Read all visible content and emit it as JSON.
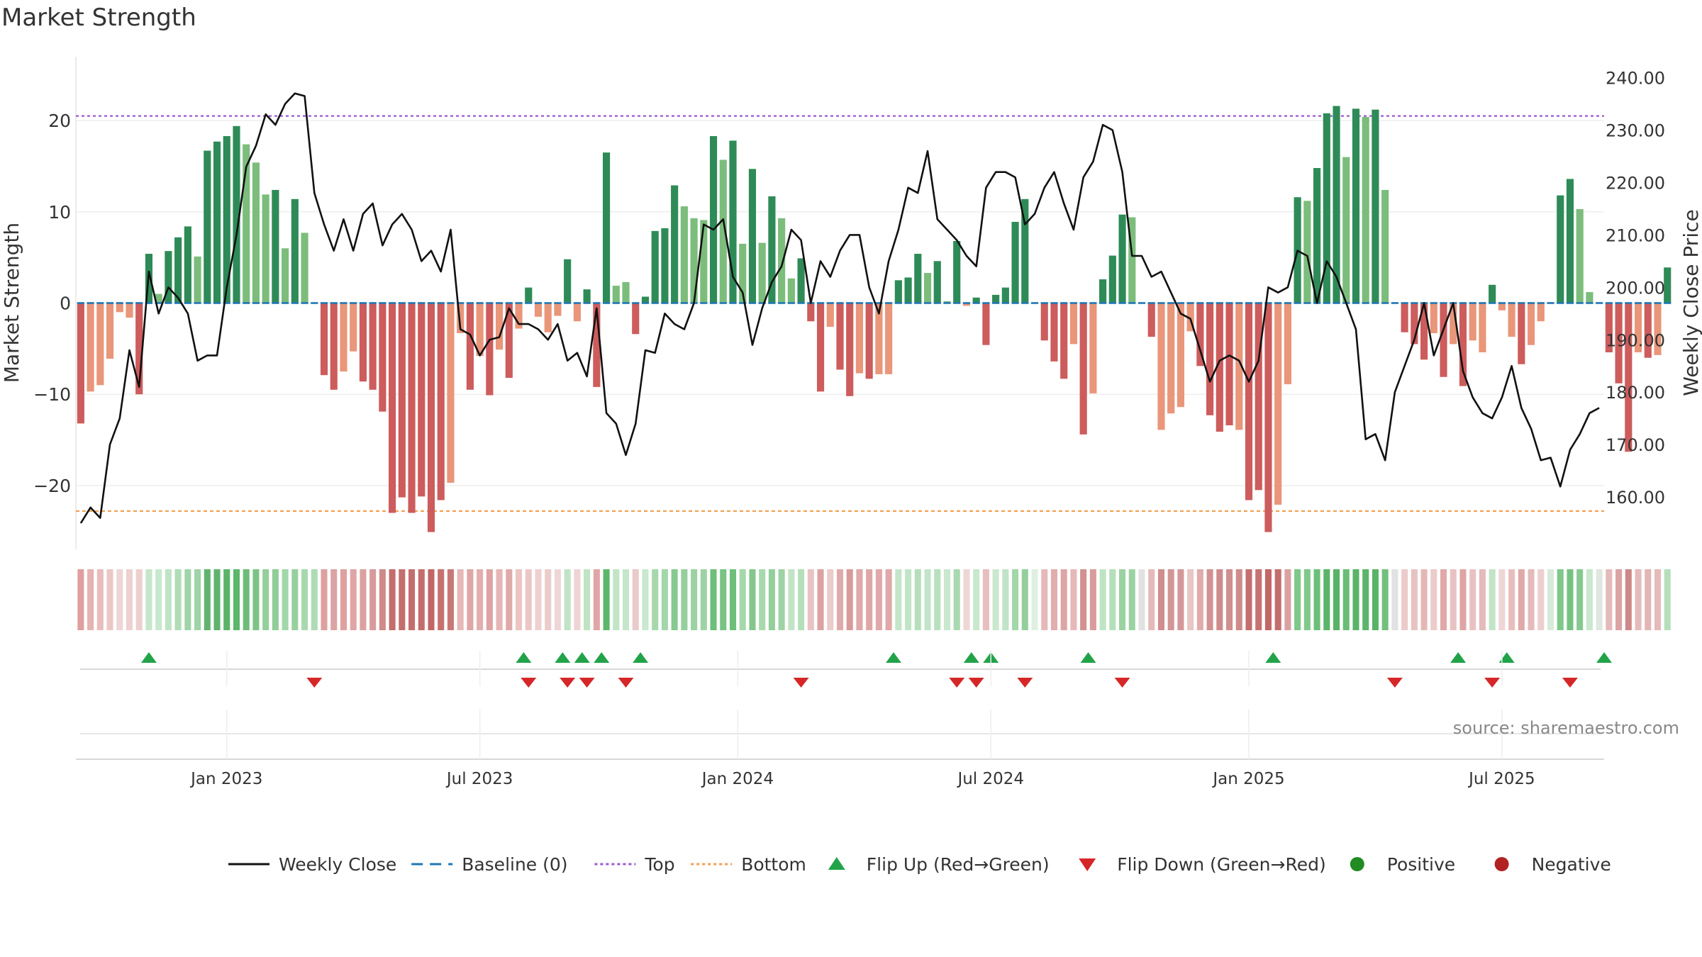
{
  "chart_data": {
    "type": "bar+line",
    "title": "Market Strength",
    "source": "source: sharemaestro.com",
    "y_left": {
      "label": "Market Strength",
      "range": [
        -27,
        27
      ],
      "ticks": [
        "20",
        "10",
        "0",
        "−10",
        "−20"
      ],
      "tick_values": [
        20,
        10,
        0,
        -10,
        -20
      ]
    },
    "y_right": {
      "label": "Weekly Close Price",
      "range": [
        150,
        244
      ],
      "ticks": [
        "240.00",
        "230.00",
        "220.00",
        "210.00",
        "200.00",
        "190.00",
        "180.00",
        "170.00",
        "160.00"
      ],
      "tick_values": [
        240,
        230,
        220,
        210,
        200,
        190,
        180,
        170,
        160
      ]
    },
    "x_ticks": [
      "Jan 2023",
      "Jul 2023",
      "Jan 2024",
      "Jul 2024",
      "Jan 2025",
      "Jul 2025"
    ],
    "x_tick_weeks": [
      15,
      41,
      67.5,
      93.5,
      120,
      146
    ],
    "top_level": 20.5,
    "bottom_level": -22.8,
    "strength": [
      -13.2,
      -9.7,
      -9.0,
      -6.1,
      -1.0,
      -1.6,
      -10,
      5.4,
      1.0,
      5.7,
      7.2,
      8.4,
      5.1,
      16.7,
      17.7,
      18.3,
      19.4,
      17.4,
      15.4,
      11.9,
      12.4,
      6.0,
      11.4,
      7.7,
      0,
      -7.9,
      -9.5,
      -7.5,
      -5.3,
      -8.6,
      -9.5,
      -11.9,
      -23.0,
      -21.3,
      -23.0,
      -21.2,
      -25.1,
      -21.6,
      -19.7,
      -3.3,
      -9.5,
      -5.8,
      -10.1,
      -5.1,
      -8.2,
      -2.8,
      1.7,
      -1.5,
      -3.2,
      -1.4,
      4.8,
      -2.0,
      1.5,
      -9.2,
      16.5,
      1.9,
      2.3,
      -3.4,
      0.7,
      7.9,
      8.2,
      12.9,
      10.6,
      9.3,
      9.1,
      18.3,
      15.7,
      17.8,
      6.5,
      14.7,
      6.6,
      11.7,
      9.3,
      2.7,
      4.9,
      -2.0,
      -9.7,
      -2.6,
      -7.3,
      -10.2,
      -7.7,
      -8.3,
      -7.8,
      -7.8,
      2.5,
      2.8,
      5.4,
      3.3,
      4.6,
      0.2,
      6.8,
      -0.3,
      0.6,
      -4.6,
      0.9,
      1.7,
      8.9,
      11.4,
      0,
      -4.1,
      -6.4,
      -8.3,
      -4.5,
      -14.4,
      -9.9,
      2.6,
      5.2,
      9.7,
      9.4,
      0,
      -3.7,
      -13.9,
      -12.1,
      -11.4,
      -3.1,
      -6.9,
      -12.3,
      -14.1,
      -13.4,
      -13.9,
      -21.6,
      -20.5,
      -25.1,
      -22.1,
      -8.9,
      11.6,
      11.2,
      14.8,
      20.8,
      21.6,
      16.0,
      21.3,
      20.4,
      21.2,
      12.4,
      0,
      -3.2,
      -4.5,
      -6.2,
      -3.3,
      -8.1,
      -4.5,
      -9.1,
      -4.1,
      -5.4,
      2.0,
      -0.8,
      -3.7,
      -6.7,
      -4.6,
      -2.0,
      0,
      11.8,
      13.6,
      10.3,
      1.2,
      0,
      -5.4,
      -8.8,
      -16.3,
      -5.4,
      -6.0,
      -5.7,
      3.9
    ],
    "intensity": [
      "a",
      "b",
      "b",
      "c",
      "d",
      "c",
      "a",
      "a",
      "d",
      "a",
      "a",
      "a",
      "b",
      "a",
      "a",
      "a",
      "a",
      "b",
      "b",
      "b",
      "a",
      "b",
      "a",
      "b",
      "e",
      "a",
      "a",
      "b",
      "b",
      "a",
      "a",
      "a",
      "a",
      "a",
      "a",
      "a",
      "a",
      "a",
      "b",
      "b",
      "a",
      "b",
      "a",
      "b",
      "a",
      "b",
      "a",
      "b",
      "b",
      "b",
      "a",
      "b",
      "a",
      "a",
      "a",
      "b",
      "b",
      "a",
      "a",
      "a",
      "a",
      "a",
      "b",
      "b",
      "b",
      "a",
      "b",
      "a",
      "b",
      "a",
      "b",
      "a",
      "b",
      "b",
      "a",
      "a",
      "a",
      "b",
      "a",
      "a",
      "b",
      "a",
      "b",
      "b",
      "a",
      "a",
      "a",
      "b",
      "a",
      "b",
      "a",
      "b",
      "a",
      "a",
      "a",
      "a",
      "a",
      "a",
      "e",
      "a",
      "a",
      "a",
      "b",
      "a",
      "b",
      "a",
      "a",
      "a",
      "b",
      "e",
      "a",
      "b",
      "b",
      "b",
      "b",
      "a",
      "a",
      "a",
      "a",
      "b",
      "a",
      "a",
      "a",
      "b",
      "b",
      "a",
      "b",
      "a",
      "a",
      "a",
      "b",
      "a",
      "b",
      "a",
      "b",
      "e",
      "a",
      "a",
      "a",
      "b",
      "a",
      "b",
      "a",
      "b",
      "b",
      "a",
      "b",
      "b",
      "a",
      "b",
      "b",
      "e",
      "a",
      "a",
      "b",
      "b",
      "e",
      "a",
      "a",
      "a",
      "b",
      "a",
      "b",
      "a"
    ],
    "strip_colors": [
      "#df9f9f",
      "#e6b2b2",
      "#e9bdbd",
      "#ebc8c8",
      "#eed6d6",
      "#eed0d0",
      "#edcfcf",
      "#c5e6ca",
      "#c7e8cd",
      "#bfe4c4",
      "#aedcb6",
      "#9ed4a7",
      "#9ed4a7",
      "#62b370",
      "#5fb46d",
      "#5ab468",
      "#5cb66b",
      "#6ebc79",
      "#7cc486",
      "#94d09c",
      "#90cd98",
      "#a2d7a9",
      "#97d09e",
      "#a8d9ae",
      "#afdcb4",
      "#dfa0a0",
      "#dba3a3",
      "#dfa0a0",
      "#dfa5a5",
      "#dba1a1",
      "#d79b9b",
      "#cf8a8a",
      "#c46d6d",
      "#c46e6e",
      "#c46d6d",
      "#c46d6d",
      "#c26666",
      "#c67070",
      "#c97878",
      "#e7b8b8",
      "#e0a6a6",
      "#e4aeae",
      "#dfa3a3",
      "#e6b5b5",
      "#e0a9a9",
      "#ecc4c4",
      "#ecc6c6",
      "#eed0d0",
      "#eccbcb",
      "#efd6d6",
      "#c1e4c6",
      "#eed4d4",
      "#bfe4c4",
      "#e0a6a6",
      "#5cb76b",
      "#c2e4c7",
      "#c5e6ca",
      "#eacaca",
      "#c9e8ce",
      "#a7d8ad",
      "#a3d7aa",
      "#88c991",
      "#95cf9d",
      "#9bd2a2",
      "#9dd3a4",
      "#6dbf79",
      "#79c385",
      "#6dbf79",
      "#a5d8ab",
      "#83c78d",
      "#a8d9ae",
      "#93cf9b",
      "#9fd3a6",
      "#c1e4c6",
      "#b5dfba",
      "#e9c3c3",
      "#dca3a3",
      "#eccbcb",
      "#e1aaaa",
      "#d89a9a",
      "#e0a8a8",
      "#dfa6a6",
      "#e0a8a8",
      "#e0a8a8",
      "#c3e5c8",
      "#c2e4c7",
      "#b5dfba",
      "#c2e4c7",
      "#b8e0bd",
      "#c9e8ce",
      "#a9d9af",
      "#efd6d6",
      "#c9e8ce",
      "#e8bebe",
      "#c9e8ce",
      "#c1e4c6",
      "#a2d7a9",
      "#93cf9b",
      "#dff0e0",
      "#e6b9b9",
      "#e2adad",
      "#dea5a5",
      "#e6b9b9",
      "#d39191",
      "#d99c9c",
      "#bfe4c4",
      "#b5dfba",
      "#9bd2a2",
      "#9bd2a2",
      "#e2e2e2",
      "#e6b9b9",
      "#d08e8e",
      "#d49595",
      "#d59898",
      "#eac5c5",
      "#e1abab",
      "#d39191",
      "#cf8b8b",
      "#d08e8e",
      "#cf8b8b",
      "#c46e6e",
      "#c67272",
      "#c26666",
      "#c46d6d",
      "#dba1a1",
      "#7ec88a",
      "#80c98b",
      "#6cbf78",
      "#5bb46a",
      "#58b267",
      "#6abd76",
      "#59b368",
      "#5cb56b",
      "#59b368",
      "#73c07e",
      "#e2e2e2",
      "#eccbcb",
      "#e8c2c2",
      "#e4b7b7",
      "#eccbcb",
      "#e0a8a8",
      "#e8c2c2",
      "#dea5a5",
      "#e8c2c2",
      "#e5baba",
      "#c2e4c7",
      "#efd6d6",
      "#e7bebe",
      "#e0a9a9",
      "#e5baba",
      "#edcfcf",
      "#d8eadb",
      "#7ec88a",
      "#75c381",
      "#86c990",
      "#c9e8ce",
      "#dfe8e0",
      "#e5baba",
      "#dca3a3",
      "#cf8888",
      "#e5baba",
      "#e3b5b5",
      "#e5baba",
      "#b5dfba"
    ],
    "price": [
      155,
      158,
      156,
      170,
      175,
      188,
      181,
      203,
      195,
      200,
      198,
      195,
      186,
      187,
      187,
      200,
      210,
      223,
      227,
      233,
      231,
      235,
      237,
      236.5,
      218,
      212,
      207,
      213,
      207,
      214,
      216,
      208,
      212,
      214,
      211,
      205,
      207,
      203,
      211,
      192,
      191,
      187,
      190,
      190.5,
      196,
      193,
      193,
      192,
      190,
      193,
      186,
      187.5,
      183,
      196,
      176,
      174,
      168,
      174,
      188,
      187.5,
      195,
      193,
      192,
      197,
      212,
      211,
      213,
      202,
      199,
      189,
      196,
      201,
      204,
      211,
      209,
      197,
      205,
      202,
      207,
      210,
      210,
      200,
      195,
      205,
      211,
      219,
      218,
      226,
      213,
      211,
      209,
      206,
      204,
      219,
      222,
      222,
      221,
      212,
      214,
      219,
      222,
      216,
      211,
      221,
      224,
      231,
      230,
      222,
      206,
      206,
      202,
      203,
      199,
      195,
      194,
      188,
      182,
      186,
      187,
      186,
      182,
      186,
      200,
      199,
      200,
      207,
      206,
      197,
      205,
      202,
      197,
      192,
      171,
      172,
      167,
      180,
      185,
      190,
      197,
      187,
      192,
      197,
      184,
      179,
      176,
      175,
      179,
      185,
      177,
      173,
      167,
      167.5,
      162,
      169,
      172,
      176,
      177
    ],
    "flip_up_weeks": [
      7,
      45.5,
      49.5,
      51.5,
      53.5,
      57.5,
      83.5,
      91.5,
      93.5,
      103.5,
      122.5,
      141.5,
      146.5,
      156.5
    ],
    "flip_down_weeks": [
      24,
      46,
      50,
      52,
      56,
      74,
      90,
      92,
      97,
      107,
      135,
      145,
      153
    ],
    "weeks": 157,
    "legend": [
      {
        "label": "Weekly Close",
        "kind": "line",
        "color": "#111111"
      },
      {
        "label": "Baseline (0)",
        "kind": "dash",
        "color": "#1f77b4"
      },
      {
        "label": "Top",
        "kind": "dot",
        "color": "#9b59d0"
      },
      {
        "label": "Bottom",
        "kind": "dot",
        "color": "#f0a050"
      },
      {
        "label": "Flip Up (Red→Green)",
        "kind": "tri-up",
        "color": "#22a34a"
      },
      {
        "label": "Flip Down (Green→Red)",
        "kind": "tri-down",
        "color": "#d62728"
      },
      {
        "label": "Positive",
        "kind": "circle",
        "color": "#228b22"
      },
      {
        "label": "Negative",
        "kind": "circle",
        "color": "#b22222"
      }
    ],
    "colors": {
      "pos_strong": "#2e8b57",
      "pos_weak": "#7cbd7c",
      "neg_strong": "#cd5c5c",
      "neg_weak": "#e9967a",
      "neutral": "#9c8aa0"
    }
  }
}
